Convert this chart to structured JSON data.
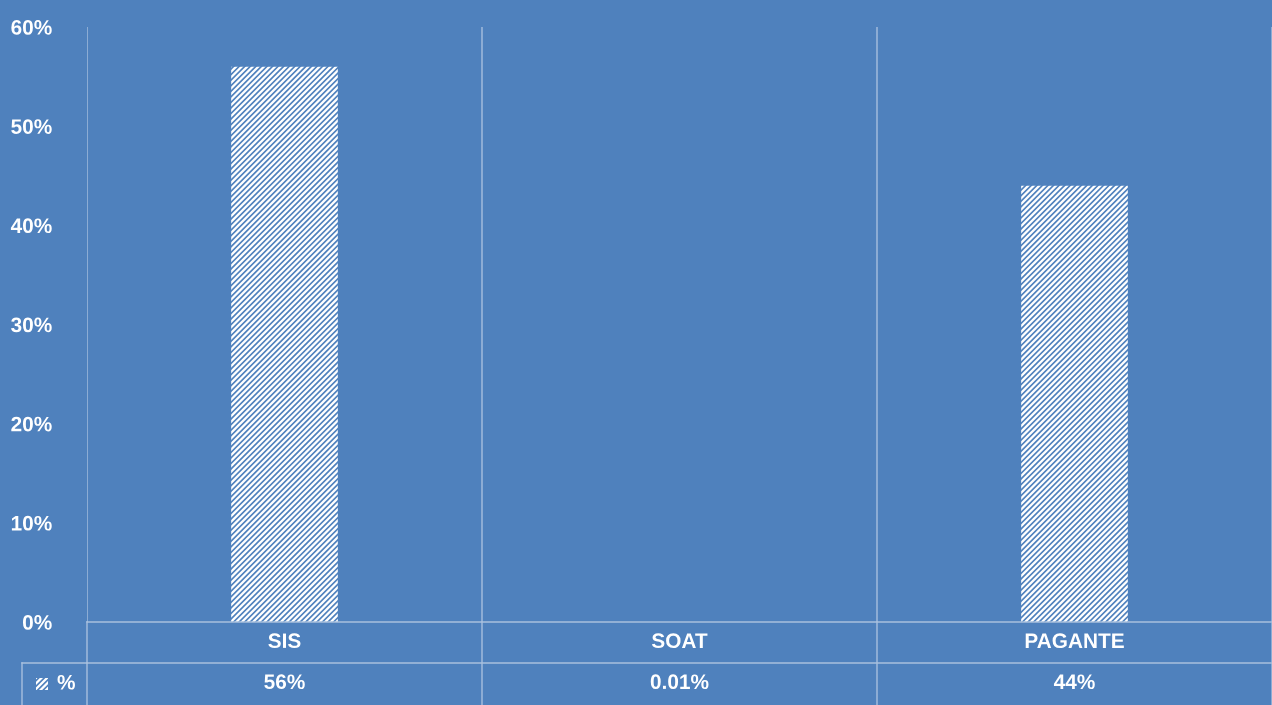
{
  "chart_data": {
    "type": "bar",
    "categories": [
      "SIS",
      "SOAT",
      "PAGANTE"
    ],
    "series": [
      {
        "name": "%",
        "color": "#ffffff",
        "values": [
          56,
          0.01,
          44
        ],
        "value_labels": [
          "56%",
          "0.01%",
          "44%"
        ]
      }
    ],
    "ylim": [
      0,
      60
    ],
    "yticks": [
      {
        "value": 0,
        "label": "0%"
      },
      {
        "value": 10,
        "label": "10%"
      },
      {
        "value": 20,
        "label": "20%"
      },
      {
        "value": 30,
        "label": "30%"
      },
      {
        "value": 40,
        "label": "40%"
      },
      {
        "value": 50,
        "label": "50%"
      },
      {
        "value": 60,
        "label": "60%"
      }
    ],
    "grid": "x"
  }
}
